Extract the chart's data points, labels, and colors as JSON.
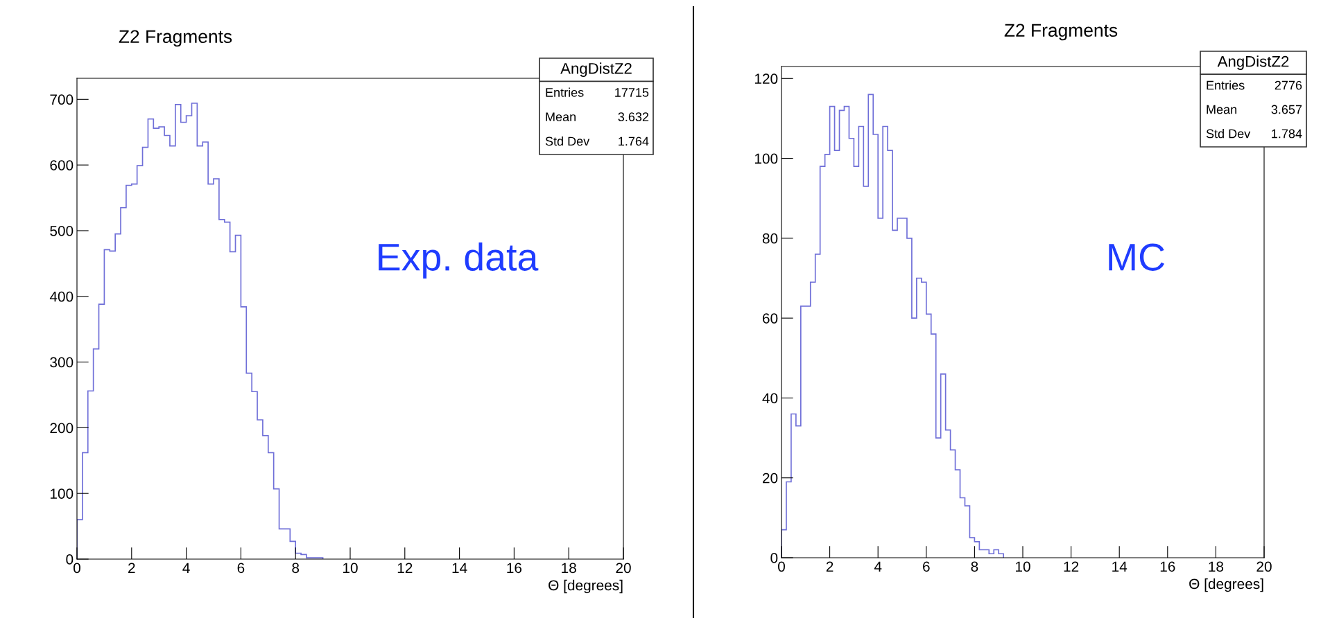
{
  "chart_data": [
    {
      "type": "histogram",
      "title": "Z2 Fragments",
      "xlabel": "Θ [degrees]",
      "color": "#6f6fd8",
      "bins": [
        0,
        0.2,
        0.4,
        0.6,
        0.8,
        1,
        1.2,
        1.4,
        1.6,
        1.8,
        2,
        2.2,
        2.4,
        2.6,
        2.8,
        3,
        3.2,
        3.4,
        3.6,
        3.8,
        4,
        4.2,
        4.4,
        4.6,
        4.8,
        5,
        5.2,
        5.4,
        5.6,
        5.8,
        6,
        6.2,
        6.4,
        6.6,
        6.8,
        7,
        7.2,
        7.4,
        7.6,
        7.8,
        8,
        8.2,
        8.4,
        8.6,
        8.8,
        9
      ],
      "values": [
        60,
        162,
        256,
        320,
        388,
        471,
        469,
        495,
        535,
        569,
        571,
        599,
        627,
        670,
        656,
        658,
        645,
        629,
        692,
        665,
        675,
        694,
        629,
        635,
        571,
        579,
        517,
        513,
        468,
        493,
        384,
        283,
        255,
        212,
        188,
        162,
        107,
        46,
        46,
        27,
        9,
        7,
        2,
        2,
        2
      ],
      "xlim": [
        0,
        20
      ],
      "xticks": [
        0,
        2,
        4,
        6,
        8,
        10,
        12,
        14,
        16,
        18,
        20
      ],
      "ylim": [
        0,
        732
      ],
      "yticks": [
        0,
        100,
        200,
        300,
        400,
        500,
        600,
        700
      ],
      "annotations": [
        "Exp. data",
        "AngDistZ2",
        "Entries",
        "17715",
        "Mean",
        "3.632",
        "Std Dev",
        "1.764"
      ]
    },
    {
      "type": "histogram",
      "title": "Z2 Fragments",
      "xlabel": "Θ [degrees]",
      "color": "#6f6fd8",
      "bins": [
        0,
        0.2,
        0.4,
        0.6,
        0.8,
        1,
        1.2,
        1.4,
        1.6,
        1.8,
        2,
        2.2,
        2.4,
        2.6,
        2.8,
        3,
        3.2,
        3.4,
        3.6,
        3.8,
        4,
        4.2,
        4.4,
        4.6,
        4.8,
        5,
        5.2,
        5.4,
        5.6,
        5.8,
        6,
        6.2,
        6.4,
        6.6,
        6.8,
        7,
        7.2,
        7.4,
        7.6,
        7.8,
        8,
        8.2,
        8.4,
        8.6,
        8.8,
        9,
        9.2
      ],
      "values": [
        7,
        19,
        36,
        33,
        63,
        63,
        69,
        76,
        98,
        101,
        113,
        102,
        112,
        113,
        105,
        98,
        108,
        93,
        116,
        106,
        85,
        108,
        102,
        82,
        85,
        85,
        80,
        60,
        70,
        69,
        61,
        56,
        30,
        46,
        32,
        27,
        22,
        15,
        13,
        5,
        4,
        2,
        2,
        1,
        2,
        1
      ],
      "xlim": [
        0,
        20
      ],
      "xticks": [
        0,
        2,
        4,
        6,
        8,
        10,
        12,
        14,
        16,
        18,
        20
      ],
      "ylim": [
        0,
        123
      ],
      "yticks": [
        0,
        20,
        40,
        60,
        80,
        100,
        120
      ],
      "annotations": [
        "MC",
        "AngDistZ2",
        "Entries",
        "2776",
        "Mean",
        "3.657",
        "Std Dev",
        "1.784"
      ]
    }
  ]
}
